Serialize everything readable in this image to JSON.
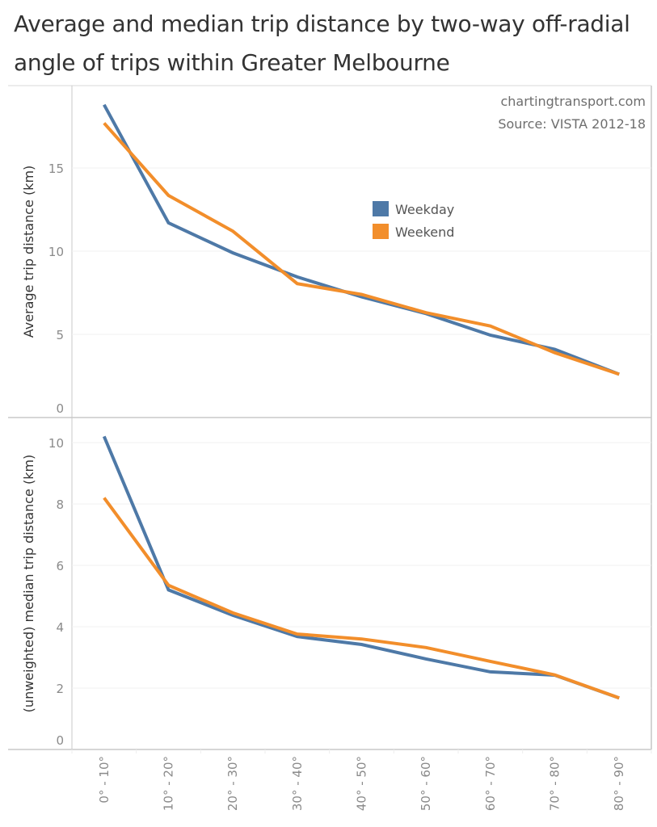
{
  "title": "Average and median trip distance by two-way off-radial angle of trips within Greater Melbourne",
  "annotations": {
    "site": "chartingtransport.com",
    "source": "Source: VISTA 2012-18"
  },
  "colors": {
    "weekday": "#4e79a7",
    "weekend": "#f28e2b",
    "grid": "#f0f0f0",
    "axis": "#c8c8c8"
  },
  "chart_data": [
    {
      "type": "line",
      "panel": "top",
      "categories": [
        "0° - 10°",
        "10° - 20°",
        "20° - 30°",
        "30° - 40°",
        "40° - 50°",
        "50° - 60°",
        "60° - 70°",
        "70° - 80°",
        "80° - 90°"
      ],
      "ylabel": "Average trip distance (km)",
      "xlabel": "",
      "ylim": [
        0,
        19.5
      ],
      "yticks": [
        0,
        5,
        10,
        15
      ],
      "grid": true,
      "legend": "upper-center-right",
      "series": [
        {
          "name": "Weekday",
          "values": [
            18.8,
            11.7,
            9.9,
            8.45,
            7.25,
            6.25,
            4.95,
            4.1,
            2.6
          ]
        },
        {
          "name": "Weekend",
          "values": [
            17.7,
            13.35,
            11.2,
            8.05,
            7.4,
            6.3,
            5.5,
            3.9,
            2.6
          ]
        }
      ]
    },
    {
      "type": "line",
      "panel": "bottom",
      "categories": [
        "0° - 10°",
        "10° - 20°",
        "20° - 30°",
        "30° - 40°",
        "40° - 50°",
        "50° - 60°",
        "60° - 70°",
        "70° - 80°",
        "80° - 90°"
      ],
      "ylabel": "(unweighted) median trip distance (km)",
      "xlabel": "",
      "ylim": [
        0,
        10.5
      ],
      "yticks": [
        0,
        2,
        4,
        6,
        8,
        10
      ],
      "grid": true,
      "series": [
        {
          "name": "Weekday",
          "values": [
            10.2,
            5.2,
            4.37,
            3.68,
            3.42,
            2.95,
            2.53,
            2.42,
            1.68
          ]
        },
        {
          "name": "Weekend",
          "values": [
            8.2,
            5.35,
            4.45,
            3.76,
            3.6,
            3.32,
            2.87,
            2.43,
            1.68
          ]
        }
      ]
    }
  ],
  "legend": [
    {
      "label": "Weekday",
      "color": "#4e79a7"
    },
    {
      "label": "Weekend",
      "color": "#f28e2b"
    }
  ]
}
